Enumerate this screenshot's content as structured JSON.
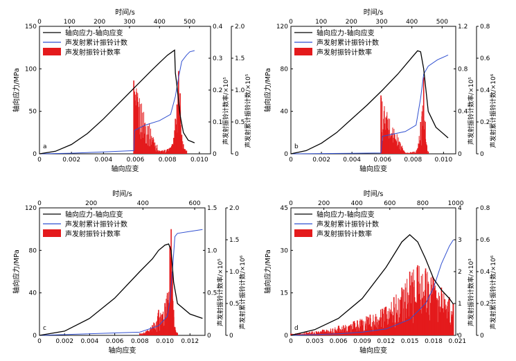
{
  "figure": {
    "legend": [
      "轴向应力-轴向应变",
      "声发射累计振铃计数",
      "声发射振铃计数率"
    ],
    "colors": {
      "stress": "#000000",
      "cumulative": "#2f4fd0",
      "rate": "#e41a1c"
    }
  },
  "chart_data": [
    {
      "panel": "a",
      "type": "line",
      "title": "",
      "xlabel": "轴向应变",
      "x2label": "时间/s",
      "ylabel": "轴向应力/MPa",
      "y2label": "声发射振铃计数率/×10⁵",
      "y3label": "声发射累计振铃计数/×10⁵",
      "xlim": [
        0,
        0.0107
      ],
      "xticks": [
        "0",
        "0.002",
        "0.004",
        "0.006",
        "0.008",
        "0.010"
      ],
      "xtickvals": [
        0,
        0.002,
        0.004,
        0.006,
        0.008,
        0.01
      ],
      "x2lim": [
        0,
        570
      ],
      "x2ticks": [
        "0",
        "100",
        "200",
        "300",
        "400",
        "500"
      ],
      "x2tickvals": [
        0,
        100,
        200,
        300,
        400,
        500
      ],
      "ylim": [
        0,
        150
      ],
      "yticks": [
        "0",
        "50",
        "100",
        "150"
      ],
      "ytickvals": [
        0,
        50,
        100,
        150
      ],
      "y2lim": [
        0,
        0.4
      ],
      "y2ticks": [
        "0",
        "0.1",
        "0.2",
        "0.3",
        "0.4"
      ],
      "y2tickvals": [
        0,
        0.1,
        0.2,
        0.3,
        0.4
      ],
      "y3lim": [
        0,
        2.0
      ],
      "y3ticks": [
        "0",
        "0.5",
        "1.0",
        "1.5",
        "2.0"
      ],
      "y3tickvals": [
        0,
        0.5,
        1.0,
        1.5,
        2.0
      ],
      "series": [
        {
          "x": [
            0,
            0.001,
            0.002,
            0.003,
            0.004,
            0.005,
            0.006,
            0.007,
            0.0075,
            0.008,
            0.0083,
            0.00845,
            0.0085,
            0.0086,
            0.0088,
            0.009,
            0.0093,
            0.0097
          ],
          "y": [
            0,
            3,
            11,
            24,
            41,
            60,
            79,
            98,
            107,
            116,
            120,
            122,
            95,
            80,
            45,
            25,
            16,
            13
          ]
        },
        {
          "x": [
            0,
            0.002,
            0.004,
            0.0059,
            0.00595,
            0.0066,
            0.0075,
            0.0082,
            0.0085,
            0.0087,
            0.0089,
            0.0092,
            0.0094,
            0.0097
          ],
          "y": [
            0,
            0.01,
            0.03,
            0.05,
            0.37,
            0.45,
            0.52,
            0.62,
            0.9,
            1.2,
            1.45,
            1.55,
            1.6,
            1.62
          ]
        },
        {
          "x": [
            0.0059,
            0.0075,
            0.008,
            0.0082,
            0.0083,
            0.0084,
            0.0085,
            0.0086,
            0.0087,
            0.0088,
            0.0089,
            0.009,
            0.0091,
            0.0092
          ],
          "y": [
            0.23,
            0.01,
            0.015,
            0.02,
            0.03,
            0.05,
            0.11,
            0.155,
            0.26,
            0.19,
            0.06,
            0.03,
            0.015,
            0.01
          ]
        }
      ]
    },
    {
      "panel": "b",
      "type": "line",
      "title": "",
      "xlabel": "轴向应变",
      "x2label": "时间/s",
      "ylabel": "轴向应力/MPa",
      "y2label": "声发射振铃计数率/×10⁵",
      "y3label": "声发射累计振铃计数/×10⁶",
      "xlim": [
        0,
        0.0108
      ],
      "xticks": [
        "0",
        "0.002",
        "0.004",
        "0.006",
        "0.008",
        "0.010"
      ],
      "xtickvals": [
        0,
        0.002,
        0.004,
        0.006,
        0.008,
        0.01
      ],
      "x2lim": [
        0,
        545
      ],
      "x2ticks": [
        "0",
        "100",
        "200",
        "300",
        "400",
        "500"
      ],
      "x2tickvals": [
        0,
        100,
        200,
        300,
        400,
        500
      ],
      "ylim": [
        0,
        120
      ],
      "yticks": [
        "0",
        "40",
        "80",
        "120"
      ],
      "ytickvals": [
        0,
        40,
        80,
        120
      ],
      "y2lim": [
        0,
        1.2
      ],
      "y2ticks": [
        "0",
        "0.4",
        "0.8",
        "1.2"
      ],
      "y2tickvals": [
        0,
        0.4,
        0.8,
        1.2
      ],
      "y3lim": [
        0,
        0.8
      ],
      "y3ticks": [
        "0",
        "0.2",
        "0.4",
        "0.6",
        "0.8"
      ],
      "y3tickvals": [
        0,
        0.2,
        0.4,
        0.6,
        0.8
      ],
      "series": [
        {
          "x": [
            0,
            0.001,
            0.002,
            0.003,
            0.004,
            0.005,
            0.006,
            0.007,
            0.008,
            0.0083,
            0.0085,
            0.0087,
            0.009,
            0.0095,
            0.0103
          ],
          "y": [
            0,
            3,
            10,
            20,
            33,
            46,
            60,
            75,
            92,
            97,
            96,
            80,
            40,
            25,
            15
          ]
        },
        {
          "x": [
            0,
            0.004,
            0.0059,
            0.006,
            0.0075,
            0.0082,
            0.0085,
            0.0087,
            0.009,
            0.0096,
            0.0103
          ],
          "y": [
            0,
            0.003,
            0.005,
            0.11,
            0.14,
            0.18,
            0.35,
            0.5,
            0.55,
            0.59,
            0.62
          ]
        },
        {
          "x": [
            0.0059,
            0.0075,
            0.008,
            0.0083,
            0.0085,
            0.0086,
            0.0087,
            0.0088,
            0.0089,
            0.009
          ],
          "y": [
            0.55,
            0.01,
            0.02,
            0.05,
            0.3,
            0.4,
            0.72,
            0.3,
            0.08,
            0.02
          ]
        }
      ]
    },
    {
      "panel": "c",
      "type": "line",
      "title": "",
      "xlabel": "轴向应变",
      "x2label": "时间/s",
      "ylabel": "轴向应力/MPa",
      "y2label": "声发射振铃计数率/×10⁵",
      "y3label": "声发射累计振铃计数/×10⁶",
      "xlim": [
        0,
        0.0132
      ],
      "xticks": [
        "0",
        "0.002",
        "0.004",
        "0.006",
        "0.008",
        "0.010",
        "0.012"
      ],
      "xtickvals": [
        0,
        0.002,
        0.004,
        0.006,
        0.008,
        0.01,
        0.012
      ],
      "x2lim": [
        0,
        640
      ],
      "x2ticks": [
        "0",
        "200",
        "400",
        "600"
      ],
      "x2tickvals": [
        0,
        200,
        400,
        600
      ],
      "ylim": [
        0,
        120
      ],
      "yticks": [
        "0",
        "40",
        "80",
        "120"
      ],
      "ytickvals": [
        0,
        40,
        80,
        120
      ],
      "y2lim": [
        0,
        1.5
      ],
      "y2ticks": [
        "0",
        "0.5",
        "1.0",
        "1.5"
      ],
      "y2tickvals": [
        0,
        0.5,
        1.0,
        1.5
      ],
      "y3lim": [
        0,
        2.0
      ],
      "y3ticks": [
        "0",
        "0.5",
        "1.0",
        "1.5",
        "2.0"
      ],
      "y3tickvals": [
        0,
        0.5,
        1.0,
        1.5,
        2.0
      ],
      "series": [
        {
          "x": [
            0,
            0.002,
            0.004,
            0.006,
            0.008,
            0.009,
            0.0095,
            0.01,
            0.0103,
            0.0105,
            0.0107,
            0.011,
            0.012,
            0.013
          ],
          "y": [
            0,
            4,
            16,
            35,
            60,
            72,
            80,
            85,
            86,
            80,
            50,
            30,
            20,
            16
          ]
        },
        {
          "x": [
            0,
            0.008,
            0.0095,
            0.0102,
            0.0104,
            0.0106,
            0.0108,
            0.011,
            0.012,
            0.013
          ],
          "y": [
            0,
            0.05,
            0.15,
            0.3,
            0.55,
            1.0,
            1.55,
            1.6,
            1.63,
            1.66
          ]
        },
        {
          "x": [
            0.008,
            0.0085,
            0.009,
            0.0095,
            0.0098,
            0.01,
            0.0102,
            0.0104,
            0.0105,
            0.0106,
            0.0107,
            0.0108,
            0.011
          ],
          "y": [
            0.02,
            0.05,
            0.12,
            0.3,
            0.25,
            0.38,
            0.5,
            1.05,
            1.25,
            0.75,
            0.3,
            0.1,
            0.03
          ]
        }
      ]
    },
    {
      "panel": "d",
      "type": "line",
      "title": "",
      "xlabel": "轴向应变",
      "x2label": "时间/s",
      "ylabel": "轴向应力/MPa",
      "y2label": "声发射振铃计数率/×10³",
      "y3label": "声发射累计振铃计数/×10⁶",
      "xlim": [
        0,
        0.0208
      ],
      "xticks": [
        "0",
        "0.003",
        "0.006",
        "0.009",
        "0.012",
        "0.015",
        "0.018",
        "0.021"
      ],
      "xtickvals": [
        0,
        0.003,
        0.006,
        0.009,
        0.012,
        0.015,
        0.018,
        0.021
      ],
      "x2lim": [
        0,
        1000
      ],
      "x2ticks": [
        "0",
        "200",
        "400",
        "600",
        "800",
        "1000"
      ],
      "x2tickvals": [
        0,
        200,
        400,
        600,
        800,
        1000
      ],
      "ylim": [
        0,
        45
      ],
      "yticks": [
        "0",
        "15",
        "30",
        "45"
      ],
      "ytickvals": [
        0,
        15,
        30,
        45
      ],
      "y2lim": [
        0,
        4
      ],
      "y2ticks": [
        "0",
        "1",
        "2",
        "3",
        "4"
      ],
      "y2tickvals": [
        0,
        1,
        2,
        3,
        4
      ],
      "y3lim": [
        0,
        0.8
      ],
      "y3ticks": [
        "0",
        "0.2",
        "0.4",
        "0.6",
        "0.8"
      ],
      "y3tickvals": [
        0,
        0.2,
        0.4,
        0.6,
        0.8
      ],
      "series": [
        {
          "x": [
            0,
            0.003,
            0.006,
            0.009,
            0.012,
            0.014,
            0.015,
            0.016,
            0.017,
            0.018,
            0.019,
            0.02,
            0.0205
          ],
          "y": [
            0,
            2,
            6,
            13,
            24,
            33,
            35.5,
            33,
            27,
            20,
            16,
            13,
            11
          ]
        },
        {
          "x": [
            0,
            0.003,
            0.006,
            0.009,
            0.012,
            0.015,
            0.017,
            0.018,
            0.019,
            0.02,
            0.0205
          ],
          "y": [
            0,
            0.005,
            0.01,
            0.02,
            0.04,
            0.1,
            0.2,
            0.3,
            0.45,
            0.56,
            0.6
          ]
        },
        {
          "x": [
            0,
            0.002,
            0.004,
            0.006,
            0.008,
            0.01,
            0.012,
            0.013,
            0.014,
            0.015,
            0.016,
            0.017,
            0.018,
            0.019,
            0.02,
            0.0205
          ],
          "y": [
            0.05,
            0.1,
            0.18,
            0.3,
            0.45,
            0.65,
            0.9,
            1.2,
            1.5,
            2.0,
            2.2,
            2.1,
            1.8,
            1.5,
            1.2,
            1.0
          ]
        }
      ]
    }
  ]
}
